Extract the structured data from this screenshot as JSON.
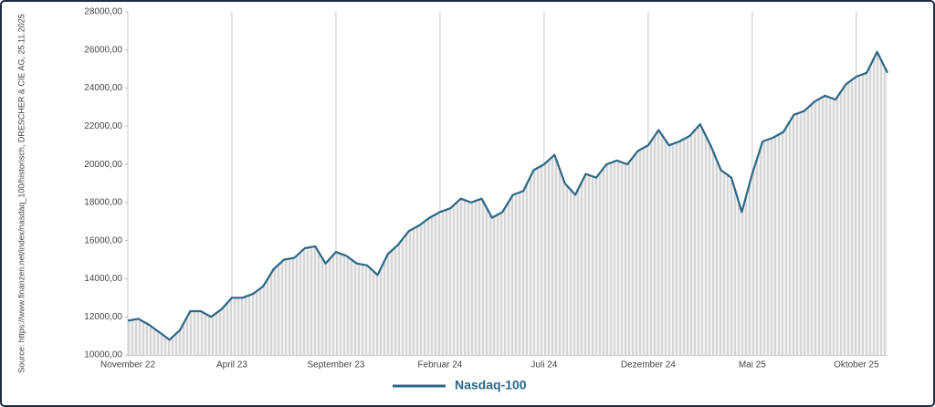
{
  "chart_data": {
    "type": "line",
    "source": "Source: https://www.finanzen.net/index/nasdaq_100/historisch, DRESCHER & CIE AG, 25.11.2025",
    "categories": [
      "November 22",
      null,
      null,
      null,
      null,
      null,
      null,
      null,
      null,
      null,
      "April 23",
      null,
      null,
      null,
      null,
      null,
      null,
      null,
      null,
      null,
      "September 23",
      null,
      null,
      null,
      null,
      null,
      null,
      null,
      null,
      null,
      "Februar 24",
      null,
      null,
      null,
      null,
      null,
      null,
      null,
      null,
      null,
      "Juli 24",
      null,
      null,
      null,
      null,
      null,
      null,
      null,
      null,
      null,
      "Dezember 24",
      null,
      null,
      null,
      null,
      null,
      null,
      null,
      null,
      null,
      "Mai 25",
      null,
      null,
      null,
      null,
      null,
      null,
      null,
      null,
      null,
      "Oktober 25",
      null,
      null,
      null
    ],
    "series": [
      {
        "name": "Nasdaq-100",
        "color": "#2b6787",
        "values": [
          11800,
          11900,
          11600,
          11200,
          10800,
          11300,
          12300,
          12300,
          12000,
          12400,
          13000,
          13000,
          13200,
          13600,
          14500,
          15000,
          15100,
          15600,
          15700,
          14800,
          15400,
          15200,
          14800,
          14700,
          14200,
          15300,
          15800,
          16500,
          16800,
          17200,
          17500,
          17700,
          18200,
          18000,
          18200,
          17200,
          17500,
          18400,
          18600,
          19700,
          20000,
          20500,
          19000,
          18400,
          19500,
          19300,
          20000,
          20200,
          20000,
          20700,
          21000,
          21800,
          21000,
          21200,
          21500,
          22100,
          21000,
          19700,
          19300,
          17500,
          19500,
          21200,
          21400,
          21700,
          22600,
          22800,
          23300,
          23600,
          23400,
          24200,
          24600,
          24800,
          25900,
          24800
        ]
      }
    ],
    "ylim": [
      10000,
      28000
    ],
    "yticks": [
      {
        "value": 10000,
        "label": "10000,00"
      },
      {
        "value": 12000,
        "label": "12000,00"
      },
      {
        "value": 14000,
        "label": "14000,00"
      },
      {
        "value": 16000,
        "label": "16000,00"
      },
      {
        "value": 18000,
        "label": "18000,00"
      },
      {
        "value": 20000,
        "label": "20000,00"
      },
      {
        "value": 22000,
        "label": "22000,00"
      },
      {
        "value": 24000,
        "label": "24000,00"
      },
      {
        "value": 26000,
        "label": "26000,00"
      },
      {
        "value": 28000,
        "label": "28000,00"
      }
    ],
    "legend": "bottom"
  }
}
